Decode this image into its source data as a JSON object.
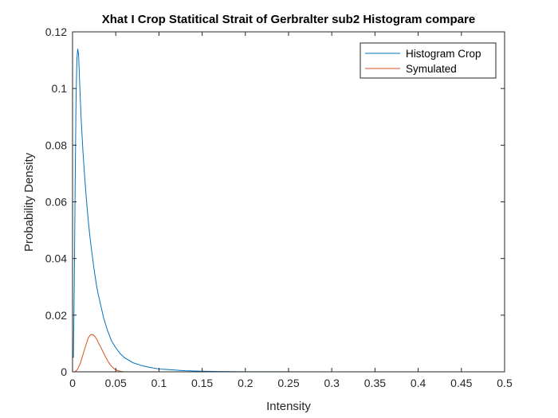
{
  "chart_data": {
    "type": "line",
    "title": "Xhat I Crop Statitical Strait of Gerbralter sub2  Histogram compare",
    "xlabel": "Intensity",
    "ylabel": "Probability Density",
    "xlim": [
      0,
      0.5
    ],
    "ylim": [
      0,
      0.12
    ],
    "xticks": [
      0,
      0.05,
      0.1,
      0.15,
      0.2,
      0.25,
      0.3,
      0.35,
      0.4,
      0.45,
      0.5
    ],
    "xtick_labels": [
      "0",
      "0.05",
      "0.1",
      "0.15",
      "0.2",
      "0.25",
      "0.3",
      "0.35",
      "0.4",
      "0.45",
      "0.5"
    ],
    "yticks": [
      0,
      0.02,
      0.04,
      0.06,
      0.08,
      0.1,
      0.12
    ],
    "ytick_labels": [
      "0",
      "0.02",
      "0.04",
      "0.06",
      "0.08",
      "0.1",
      "0.12"
    ],
    "grid": false,
    "legend_position": "top-right",
    "series": [
      {
        "name": "Histogram Crop",
        "color": "#0072BD",
        "x": [
          0.001,
          0.002,
          0.003,
          0.004,
          0.005,
          0.006,
          0.007,
          0.008,
          0.009,
          0.01,
          0.012,
          0.014,
          0.016,
          0.018,
          0.02,
          0.022,
          0.025,
          0.028,
          0.03,
          0.033,
          0.036,
          0.04,
          0.045,
          0.05,
          0.055,
          0.06,
          0.07,
          0.08,
          0.09,
          0.1,
          0.11,
          0.12,
          0.13,
          0.15,
          0.17,
          0.2,
          0.25,
          0.3,
          0.35,
          0.4,
          0.45
        ],
        "y": [
          0.005,
          0.03,
          0.065,
          0.095,
          0.11,
          0.114,
          0.112,
          0.104,
          0.096,
          0.089,
          0.078,
          0.069,
          0.061,
          0.054,
          0.048,
          0.043,
          0.036,
          0.03,
          0.027,
          0.023,
          0.019,
          0.015,
          0.011,
          0.0085,
          0.0065,
          0.005,
          0.0032,
          0.0022,
          0.0015,
          0.001,
          0.0008,
          0.0006,
          0.0004,
          0.0002,
          0.0001,
          5e-05,
          2e-05,
          1e-05,
          5e-06,
          2e-06,
          1e-06
        ]
      },
      {
        "name": "Symulated",
        "color": "#D95319",
        "x": [
          0.003,
          0.006,
          0.009,
          0.012,
          0.015,
          0.018,
          0.02,
          0.022,
          0.024,
          0.026,
          0.028,
          0.03,
          0.033,
          0.036,
          0.039,
          0.042,
          0.045,
          0.048,
          0.051,
          0.054,
          0.057,
          0.06
        ],
        "y": [
          0.0,
          0.001,
          0.003,
          0.006,
          0.009,
          0.0118,
          0.0128,
          0.0132,
          0.013,
          0.0124,
          0.0115,
          0.0102,
          0.0085,
          0.0066,
          0.0048,
          0.0032,
          0.002,
          0.0011,
          0.0006,
          0.0003,
          0.0001,
          0.0
        ]
      }
    ]
  }
}
